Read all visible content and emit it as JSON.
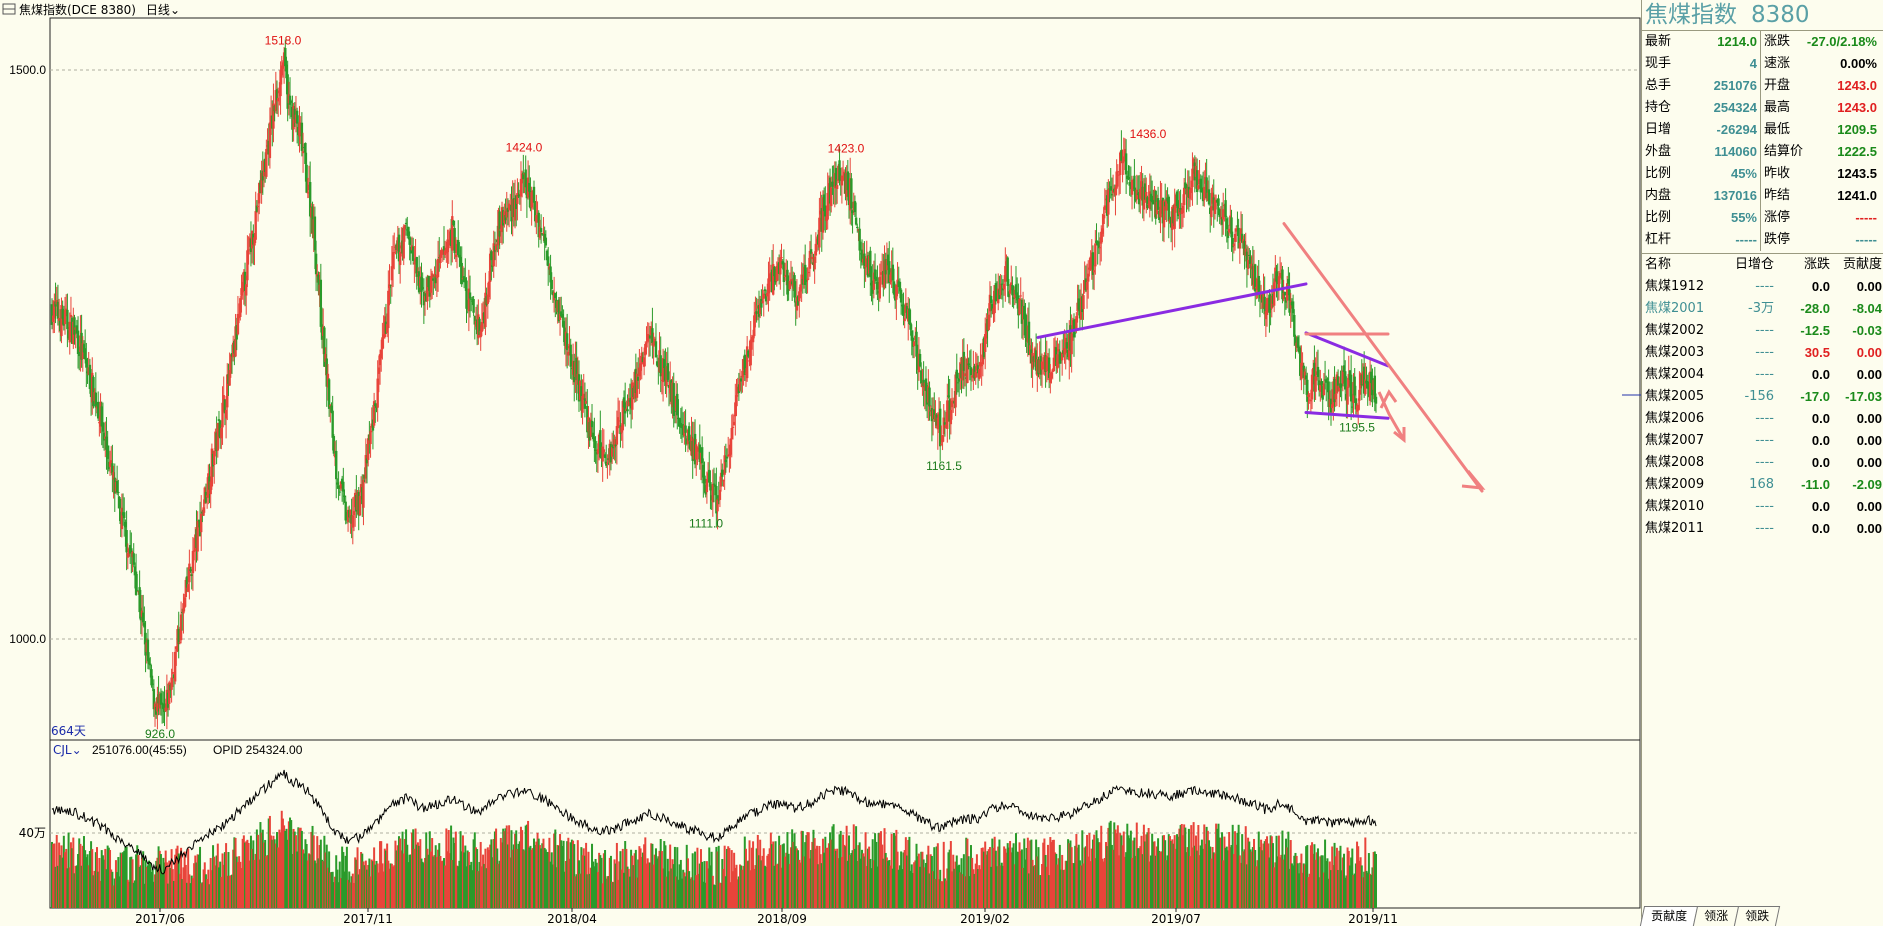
{
  "header": {
    "title": "焦煤指数(DCE 8380)",
    "period": "日线"
  },
  "volume_header": {
    "indicator": "CJL",
    "volume_text": "251076.00(45:55)",
    "opid_text": "OPID 254324.00"
  },
  "days_label": "664天",
  "colors": {
    "up": "#e8443a",
    "down": "#2a9a2a",
    "high_label": "#e01010",
    "low_label": "#1a7a1a",
    "trend_purple": "#8a2be2",
    "trend_pink": "#f08080",
    "grid": "#b0b0a0"
  },
  "chart_data": {
    "type": "candlestick",
    "title": "焦煤指数(DCE 8380)",
    "y_axis_ticks": [
      1500.0,
      1000.0
    ],
    "y_axis_labels": [
      "1500.0",
      "1000.0"
    ],
    "ylim": [
      895,
      1540
    ],
    "x_tick_labels": [
      "2017/06",
      "2017/11",
      "2018/04",
      "2018/09",
      "2019/02",
      "2019/07",
      "2019/11"
    ],
    "annotations": [
      {
        "label": "1518.0",
        "value": 1518.0,
        "kind": "high",
        "date": "2017/08"
      },
      {
        "label": "926.0",
        "value": 926.0,
        "kind": "low",
        "date": "2017/06"
      },
      {
        "label": "1424.0",
        "value": 1424.0,
        "kind": "high",
        "date": "2018/03"
      },
      {
        "label": "1111.0",
        "value": 1111.0,
        "kind": "low",
        "date": "2018/08"
      },
      {
        "label": "1423.0",
        "value": 1423.0,
        "kind": "high",
        "date": "2018/11"
      },
      {
        "label": "1161.5",
        "value": 1161.5,
        "kind": "low",
        "date": "2019/01"
      },
      {
        "label": "1436.0",
        "value": 1436.0,
        "kind": "high",
        "date": "2019/06"
      },
      {
        "label": "1195.5",
        "value": 1195.5,
        "kind": "low",
        "date": "2019/10"
      }
    ],
    "price_path": [
      [
        0,
        1290
      ],
      [
        20,
        1270
      ],
      [
        40,
        1200
      ],
      [
        55,
        1120
      ],
      [
        70,
        1060
      ],
      [
        85,
        950
      ],
      [
        95,
        930
      ],
      [
        105,
        990
      ],
      [
        115,
        1050
      ],
      [
        130,
        1130
      ],
      [
        150,
        1230
      ],
      [
        165,
        1330
      ],
      [
        180,
        1420
      ],
      [
        190,
        1480
      ],
      [
        195,
        1510
      ],
      [
        200,
        1470
      ],
      [
        210,
        1440
      ],
      [
        220,
        1370
      ],
      [
        230,
        1250
      ],
      [
        240,
        1150
      ],
      [
        250,
        1100
      ],
      [
        262,
        1130
      ],
      [
        275,
        1220
      ],
      [
        288,
        1330
      ],
      [
        300,
        1360
      ],
      [
        312,
        1300
      ],
      [
        325,
        1320
      ],
      [
        338,
        1360
      ],
      [
        350,
        1300
      ],
      [
        362,
        1270
      ],
      [
        375,
        1360
      ],
      [
        388,
        1380
      ],
      [
        400,
        1400
      ],
      [
        410,
        1370
      ],
      [
        420,
        1330
      ],
      [
        432,
        1270
      ],
      [
        445,
        1220
      ],
      [
        458,
        1170
      ],
      [
        470,
        1160
      ],
      [
        482,
        1200
      ],
      [
        495,
        1230
      ],
      [
        505,
        1270
      ],
      [
        515,
        1240
      ],
      [
        528,
        1200
      ],
      [
        540,
        1170
      ],
      [
        552,
        1140
      ],
      [
        562,
        1120
      ],
      [
        572,
        1170
      ],
      [
        585,
        1240
      ],
      [
        600,
        1300
      ],
      [
        615,
        1330
      ],
      [
        628,
        1300
      ],
      [
        640,
        1330
      ],
      [
        652,
        1380
      ],
      [
        665,
        1410
      ],
      [
        675,
        1390
      ],
      [
        685,
        1340
      ],
      [
        695,
        1310
      ],
      [
        705,
        1330
      ],
      [
        715,
        1300
      ],
      [
        725,
        1270
      ],
      [
        735,
        1230
      ],
      [
        745,
        1190
      ],
      [
        752,
        1180
      ],
      [
        762,
        1220
      ],
      [
        772,
        1240
      ],
      [
        782,
        1230
      ],
      [
        792,
        1290
      ],
      [
        805,
        1320
      ],
      [
        815,
        1300
      ],
      [
        825,
        1260
      ],
      [
        835,
        1240
      ],
      [
        845,
        1240
      ],
      [
        858,
        1260
      ],
      [
        870,
        1300
      ],
      [
        882,
        1340
      ],
      [
        895,
        1400
      ],
      [
        905,
        1420
      ],
      [
        915,
        1390
      ],
      [
        925,
        1390
      ],
      [
        935,
        1380
      ],
      [
        945,
        1370
      ],
      [
        955,
        1390
      ],
      [
        965,
        1410
      ],
      [
        975,
        1390
      ],
      [
        985,
        1380
      ],
      [
        995,
        1360
      ],
      [
        1005,
        1350
      ],
      [
        1015,
        1320
      ],
      [
        1025,
        1290
      ],
      [
        1035,
        1320
      ],
      [
        1045,
        1300
      ],
      [
        1052,
        1250
      ],
      [
        1060,
        1220
      ],
      [
        1070,
        1230
      ],
      [
        1080,
        1210
      ],
      [
        1090,
        1230
      ],
      [
        1100,
        1210
      ],
      [
        1110,
        1230
      ],
      [
        1118,
        1214
      ]
    ],
    "volume": {
      "ytick_label": "40万",
      "ytick_value": 400000,
      "last_volume": 251076,
      "last_opid": 254324
    }
  },
  "trendlines": [
    {
      "color": "purple",
      "from": [
        "2019/02",
        1265
      ],
      "to": [
        "2019/09",
        1312
      ]
    },
    {
      "color": "purple",
      "from": [
        "2019/09",
        1269
      ],
      "to": [
        "2019/11",
        1240
      ]
    },
    {
      "color": "purple",
      "from": [
        "2019/09",
        1199
      ],
      "to": [
        "2019/11",
        1194
      ]
    },
    {
      "color": "pink",
      "from": [
        "2019/08",
        1365
      ],
      "to": [
        "2019/12",
        1130
      ]
    },
    {
      "color": "pink",
      "from": [
        "2019/09",
        1268
      ],
      "to": [
        "2019/11",
        1268
      ]
    }
  ],
  "panel": {
    "name": "焦煤指数",
    "code": "8380",
    "quotes": [
      {
        "l": "最新",
        "lv": "1214.0",
        "lc": "green",
        "r": "涨跌",
        "rv": "-27.0/2.18%",
        "rc": "green"
      },
      {
        "l": "现手",
        "lv": "4",
        "lc": "teal",
        "r": "速涨",
        "rv": "0.00%",
        "rc": "black"
      },
      {
        "l": "总手",
        "lv": "251076",
        "lc": "teal",
        "r": "开盘",
        "rv": "1243.0",
        "rc": "red"
      },
      {
        "l": "持仓",
        "lv": "254324",
        "lc": "teal",
        "r": "最高",
        "rv": "1243.0",
        "rc": "red"
      },
      {
        "l": "日增",
        "lv": "-26294",
        "lc": "teal",
        "r": "最低",
        "rv": "1209.5",
        "rc": "green"
      },
      {
        "l": "外盘",
        "lv": "114060",
        "lc": "teal",
        "r": "结算价",
        "rv": "1222.5",
        "rc": "green"
      },
      {
        "l": "比例",
        "lv": "45%",
        "lc": "teal",
        "r": "昨收",
        "rv": "1243.5",
        "rc": "black"
      },
      {
        "l": "内盘",
        "lv": "137016",
        "lc": "teal",
        "r": "昨结",
        "rv": "1241.0",
        "rc": "black"
      },
      {
        "l": "比例",
        "lv": "55%",
        "lc": "teal",
        "r": "涨停",
        "rv": "-----",
        "rc": "red"
      },
      {
        "l": "杠杆",
        "lv": "-----",
        "lc": "teal",
        "r": "跌停",
        "rv": "-----",
        "rc": "teal"
      }
    ],
    "contract_headers": [
      "名称",
      "日增仓",
      "涨跌",
      "贡献度"
    ],
    "contracts": [
      {
        "name": "焦煤1912",
        "chg": "----",
        "diff": "0.0",
        "contrib": "0.00",
        "nc": "black",
        "cc": "teal",
        "dc": "black",
        "kc": "black"
      },
      {
        "name": "焦煤2001",
        "chg": "-3万",
        "diff": "-28.0",
        "contrib": "-8.04",
        "nc": "teal",
        "cc": "teal",
        "dc": "green",
        "kc": "green"
      },
      {
        "name": "焦煤2002",
        "chg": "----",
        "diff": "-12.5",
        "contrib": "-0.03",
        "nc": "black",
        "cc": "teal",
        "dc": "green",
        "kc": "green"
      },
      {
        "name": "焦煤2003",
        "chg": "----",
        "diff": "30.5",
        "contrib": "0.00",
        "nc": "black",
        "cc": "teal",
        "dc": "red",
        "kc": "red"
      },
      {
        "name": "焦煤2004",
        "chg": "----",
        "diff": "0.0",
        "contrib": "0.00",
        "nc": "black",
        "cc": "teal",
        "dc": "black",
        "kc": "black"
      },
      {
        "name": "焦煤2005",
        "chg": "-156",
        "diff": "-17.0",
        "contrib": "-17.03",
        "nc": "black",
        "cc": "teal",
        "dc": "green",
        "kc": "green"
      },
      {
        "name": "焦煤2006",
        "chg": "----",
        "diff": "0.0",
        "contrib": "0.00",
        "nc": "black",
        "cc": "teal",
        "dc": "black",
        "kc": "black"
      },
      {
        "name": "焦煤2007",
        "chg": "----",
        "diff": "0.0",
        "contrib": "0.00",
        "nc": "black",
        "cc": "teal",
        "dc": "black",
        "kc": "black"
      },
      {
        "name": "焦煤2008",
        "chg": "----",
        "diff": "0.0",
        "contrib": "0.00",
        "nc": "black",
        "cc": "teal",
        "dc": "black",
        "kc": "black"
      },
      {
        "name": "焦煤2009",
        "chg": "168",
        "diff": "-11.0",
        "contrib": "-2.09",
        "nc": "black",
        "cc": "teal",
        "dc": "green",
        "kc": "green"
      },
      {
        "name": "焦煤2010",
        "chg": "----",
        "diff": "0.0",
        "contrib": "0.00",
        "nc": "black",
        "cc": "teal",
        "dc": "black",
        "kc": "black"
      },
      {
        "name": "焦煤2011",
        "chg": "----",
        "diff": "0.0",
        "contrib": "0.00",
        "nc": "black",
        "cc": "teal",
        "dc": "black",
        "kc": "black"
      }
    ],
    "tabs": [
      "贡献度",
      "领涨",
      "领跌"
    ]
  }
}
